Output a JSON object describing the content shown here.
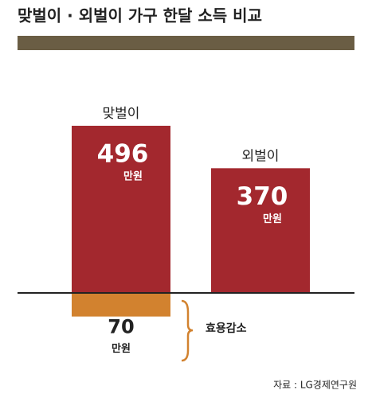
{
  "chart_data": {
    "type": "bar",
    "title": "맞벌이 · 외벌이 가구 한달 소득 비교",
    "categories": [
      "맞벌이",
      "외벌이"
    ],
    "values": [
      496,
      370
    ],
    "color": "#a3282e",
    "unit": "만원",
    "reduction": {
      "label": "효용감소",
      "value": 70,
      "color": "#d2822f"
    },
    "source": "자료 : LG경제연구원"
  }
}
